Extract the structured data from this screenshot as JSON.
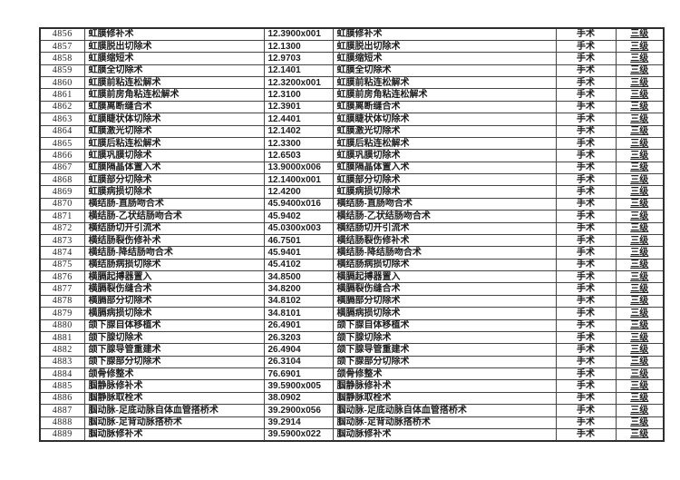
{
  "colors": {
    "background": "#ffffff",
    "border_outer": "#2e2e2e",
    "border_inner": "#454545",
    "text": "#1c1c1c"
  },
  "table": {
    "columns": [
      "row_number",
      "procedure_name",
      "procedure_code",
      "procedure_name_repeat",
      "category",
      "level"
    ],
    "rows": [
      [
        "4856",
        "虹膜修补术",
        "12.3900x001",
        "虹膜修补术",
        "手术",
        "三级"
      ],
      [
        "4857",
        "虹膜脱出切除术",
        "12.1300",
        "虹膜脱出切除术",
        "手术",
        "三级"
      ],
      [
        "4858",
        "虹膜缩短术",
        "12.9703",
        "虹膜缩短术",
        "手术",
        "三级"
      ],
      [
        "4859",
        "虹膜全切除术",
        "12.1401",
        "虹膜全切除术",
        "手术",
        "三级"
      ],
      [
        "4860",
        "虹膜前粘连松解术",
        "12.3200x001",
        "虹膜前粘连松解术",
        "手术",
        "三级"
      ],
      [
        "4861",
        "虹膜前房角粘连松解术",
        "12.3100",
        "虹膜前房角粘连松解术",
        "手术",
        "三级"
      ],
      [
        "4862",
        "虹膜离断缝合术",
        "12.3901",
        "虹膜离断缝合术",
        "手术",
        "三级"
      ],
      [
        "4863",
        "虹膜睫状体切除术",
        "12.4401",
        "虹膜睫状体切除术",
        "手术",
        "三级"
      ],
      [
        "4864",
        "虹膜激光切除术",
        "12.1402",
        "虹膜激光切除术",
        "手术",
        "三级"
      ],
      [
        "4865",
        "虹膜后粘连松解术",
        "12.3300",
        "虹膜后粘连松解术",
        "手术",
        "三级"
      ],
      [
        "4866",
        "虹膜巩膜切除术",
        "12.6503",
        "虹膜巩膜切除术",
        "手术",
        "三级"
      ],
      [
        "4867",
        "虹膜隔晶体置入术",
        "13.9000x006",
        "虹膜隔晶体置入术",
        "手术",
        "三级"
      ],
      [
        "4868",
        "虹膜部分切除术",
        "12.1400x001",
        "虹膜部分切除术",
        "手术",
        "三级"
      ],
      [
        "4869",
        "虹膜病损切除术",
        "12.4200",
        "虹膜病损切除术",
        "手术",
        "三级"
      ],
      [
        "4870",
        "横结肠-直肠吻合术",
        "45.9400x016",
        "横结肠-直肠吻合术",
        "手术",
        "三级"
      ],
      [
        "4871",
        "横结肠-乙状结肠吻合术",
        "45.9402",
        "横结肠-乙状结肠吻合术",
        "手术",
        "三级"
      ],
      [
        "4872",
        "横结肠切开引流术",
        "45.0300x003",
        "横结肠切开引流术",
        "手术",
        "三级"
      ],
      [
        "4873",
        "横结肠裂伤修补术",
        "46.7501",
        "横结肠裂伤修补术",
        "手术",
        "三级"
      ],
      [
        "4874",
        "横结肠-降结肠吻合术",
        "45.9401",
        "横结肠-降结肠吻合术",
        "手术",
        "三级"
      ],
      [
        "4875",
        "横结肠病损切除术",
        "45.4102",
        "横结肠病损切除术",
        "手术",
        "三级"
      ],
      [
        "4876",
        "横膈起搏器置入",
        "34.8500",
        "横膈起搏器置入",
        "手术",
        "三级"
      ],
      [
        "4877",
        "横膈裂伤缝合术",
        "34.8200",
        "横膈裂伤缝合术",
        "手术",
        "三级"
      ],
      [
        "4878",
        "横膈部分切除术",
        "34.8102",
        "横膈部分切除术",
        "手术",
        "三级"
      ],
      [
        "4879",
        "横膈病损切除术",
        "34.8101",
        "横膈病损切除术",
        "手术",
        "三级"
      ],
      [
        "4880",
        "颌下腺自体移植术",
        "26.4901",
        "颌下腺自体移植术",
        "手术",
        "三级"
      ],
      [
        "4881",
        "颌下腺切除术",
        "26.3203",
        "颌下腺切除术",
        "手术",
        "三级"
      ],
      [
        "4882",
        "颌下腺导管重建术",
        "26.4904",
        "颌下腺导管重建术",
        "手术",
        "三级"
      ],
      [
        "4883",
        "颌下腺部分切除术",
        "26.3104",
        "颌下腺部分切除术",
        "手术",
        "三级"
      ],
      [
        "4884",
        "颌骨修整术",
        "76.6901",
        "颌骨修整术",
        "手术",
        "三级"
      ],
      [
        "4885",
        "腘静脉修补术",
        "39.5900x005",
        "腘静脉修补术",
        "手术",
        "三级"
      ],
      [
        "4886",
        "腘静脉取栓术",
        "38.0902",
        "腘静脉取栓术",
        "手术",
        "三级"
      ],
      [
        "4887",
        "腘动脉-足底动脉自体血管搭桥术",
        "39.2900x056",
        "腘动脉-足底动脉自体血管搭桥术",
        "手术",
        "三级"
      ],
      [
        "4888",
        "腘动脉-足背动脉搭桥术",
        "39.2914",
        "腘动脉-足背动脉搭桥术",
        "手术",
        "三级"
      ],
      [
        "4889",
        "腘动脉修补术",
        "39.5900x022",
        "腘动脉修补术",
        "手术",
        "三级"
      ]
    ]
  }
}
